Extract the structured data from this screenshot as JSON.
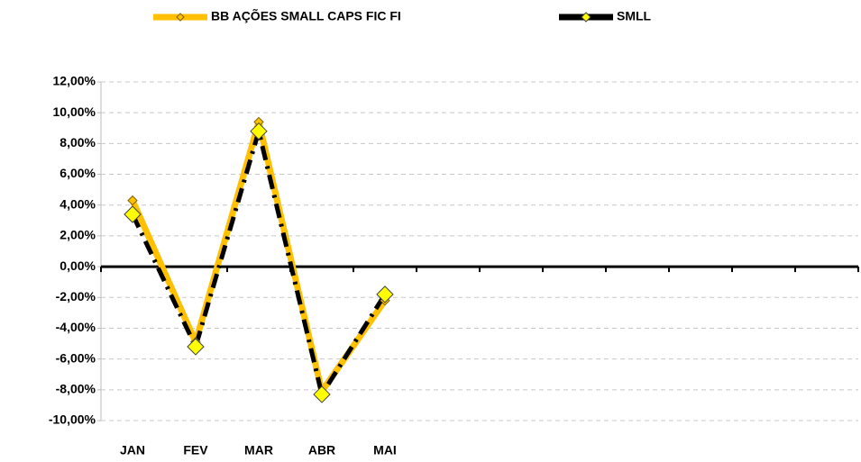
{
  "chart_data": {
    "type": "line",
    "categories": [
      "JAN",
      "FEV",
      "MAR",
      "ABR",
      "MAI",
      null,
      null,
      null,
      null,
      null,
      null,
      null
    ],
    "series": [
      {
        "name": "BB AÇÕES SMALL CAPS FIC FI",
        "color": "#ffc000",
        "values": [
          4.3,
          -4.9,
          9.4,
          -8.1,
          -2.2,
          null,
          null,
          null,
          null,
          null,
          null,
          null
        ]
      },
      {
        "name": "SMLL",
        "color": "#000000",
        "values": [
          3.4,
          -5.2,
          8.8,
          -8.3,
          -1.8,
          null,
          null,
          null,
          null,
          null,
          null,
          null
        ]
      }
    ],
    "ylim": [
      -10,
      12
    ],
    "yticks": [
      {
        "value": -10,
        "label": "-10,00%"
      },
      {
        "value": -8,
        "label": "-8,00%"
      },
      {
        "value": -6,
        "label": "-6,00%"
      },
      {
        "value": -4,
        "label": "-4,00%"
      },
      {
        "value": -2,
        "label": "-2,00%"
      },
      {
        "value": 0,
        "label": "0,00%"
      },
      {
        "value": 2,
        "label": "2,00%"
      },
      {
        "value": 4,
        "label": "4,00%"
      },
      {
        "value": 6,
        "label": "6,00%"
      },
      {
        "value": 8,
        "label": "8,00%"
      },
      {
        "value": 10,
        "label": "10,00%"
      },
      {
        "value": 12,
        "label": "12,00%"
      }
    ],
    "grid": true,
    "legend": "top"
  }
}
